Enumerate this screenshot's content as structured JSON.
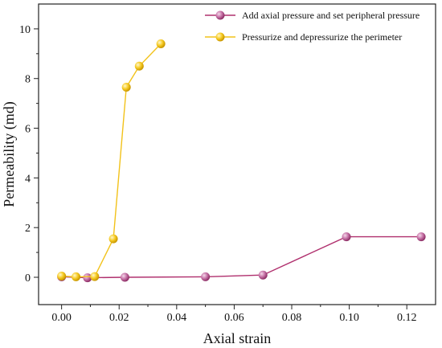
{
  "chart_data": {
    "type": "line",
    "xlabel": "Axial strain",
    "ylabel": "Permeability (md)",
    "xlim": [
      -0.008,
      0.13
    ],
    "ylim": [
      -1.1,
      11.0
    ],
    "x_ticks": [
      0.0,
      0.02,
      0.04,
      0.06,
      0.08,
      0.1,
      0.12
    ],
    "x_tick_labels": [
      "0.00",
      "0.02",
      "0.04",
      "0.06",
      "0.08",
      "0.10",
      "0.12"
    ],
    "y_ticks": [
      0,
      2,
      4,
      6,
      8,
      10
    ],
    "y_tick_labels": [
      "0",
      "2",
      "4",
      "6",
      "8",
      "10"
    ],
    "legend_position": "top-right",
    "grid": false,
    "series": [
      {
        "name": "Add axial pressure and set  peripheral pressure",
        "color": "#b0306e",
        "marker_color": "#c070a0",
        "points": [
          {
            "x": 0.0,
            "y": 0.02
          },
          {
            "x": 0.009,
            "y": -0.02
          },
          {
            "x": 0.022,
            "y": 0.0
          },
          {
            "x": 0.05,
            "y": 0.02
          },
          {
            "x": 0.07,
            "y": 0.09
          },
          {
            "x": 0.099,
            "y": 1.63
          },
          {
            "x": 0.125,
            "y": 1.63
          }
        ]
      },
      {
        "name": "Pressurize and depressurize the perimeter",
        "color": "#f2c21a",
        "marker_color": "#f5c518",
        "points": [
          {
            "x": 0.0,
            "y": 0.05
          },
          {
            "x": 0.005,
            "y": 0.02
          },
          {
            "x": 0.0115,
            "y": 0.03
          },
          {
            "x": 0.018,
            "y": 1.55
          },
          {
            "x": 0.0225,
            "y": 7.65
          },
          {
            "x": 0.027,
            "y": 8.5
          },
          {
            "x": 0.0345,
            "y": 9.4
          }
        ]
      }
    ]
  }
}
